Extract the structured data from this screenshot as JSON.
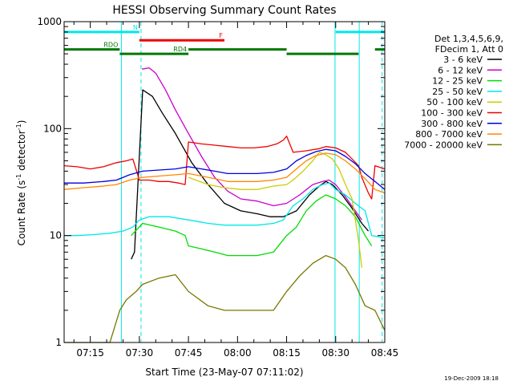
{
  "chart_data": {
    "type": "line",
    "title": "HESSI Observing Summary Count Rates",
    "xlabel": "Start Time (23-May-07 07:11:02)",
    "ylabel_main": "Count Rate (s",
    "ylabel_sup1": "-1",
    "ylabel_mid": " detector",
    "ylabel_sup2": "-1",
    "ylabel_end": ")",
    "y_scale": "log",
    "xlim": [
      -4,
      94
    ],
    "ylim": [
      1,
      1000
    ],
    "x_unit": "minutes after 07:11:02",
    "x_ticks": [
      {
        "x": 4,
        "label": "07:15"
      },
      {
        "x": 19,
        "label": "07:30"
      },
      {
        "x": 34,
        "label": "07:45"
      },
      {
        "x": 49,
        "label": "08:00"
      },
      {
        "x": 64,
        "label": "08:15"
      },
      {
        "x": 79,
        "label": "08:30"
      },
      {
        "x": 94,
        "label": "08:45"
      }
    ],
    "y_ticks": [
      {
        "y": 1,
        "label": "1"
      },
      {
        "y": 10,
        "label": "10"
      },
      {
        "y": 100,
        "label": "100"
      },
      {
        "y": 1000,
        "label": "1000"
      }
    ],
    "legend_header": [
      "Det 1,3,4,5,6,9,",
      "FDecim 1, Att 0"
    ],
    "legend_placement": "right",
    "series": [
      {
        "name": "3 - 6 keV",
        "color": "#000000",
        "points": [
          [
            16.5,
            6
          ],
          [
            17.5,
            7
          ],
          [
            20,
            230
          ],
          [
            23,
            200
          ],
          [
            26,
            140
          ],
          [
            30,
            90
          ],
          [
            35,
            48
          ],
          [
            40,
            30
          ],
          [
            45,
            20
          ],
          [
            50,
            17
          ],
          [
            55,
            16
          ],
          [
            59,
            15
          ],
          [
            63,
            15
          ],
          [
            67,
            17
          ],
          [
            71,
            24
          ],
          [
            74,
            29
          ],
          [
            76,
            32
          ],
          [
            78,
            30
          ],
          [
            81,
            24
          ],
          [
            84,
            18
          ],
          [
            87,
            13
          ],
          [
            89,
            11
          ]
        ]
      },
      {
        "name": "6 - 12 keV",
        "color": "#cc00cc",
        "points": [
          [
            19.8,
            360
          ],
          [
            22,
            370
          ],
          [
            24,
            330
          ],
          [
            27,
            230
          ],
          [
            30,
            150
          ],
          [
            34,
            90
          ],
          [
            38,
            55
          ],
          [
            42,
            35
          ],
          [
            46,
            26
          ],
          [
            50,
            22
          ],
          [
            55,
            21
          ],
          [
            60,
            19
          ],
          [
            64,
            20
          ],
          [
            68,
            24
          ],
          [
            72,
            30
          ],
          [
            75,
            32
          ],
          [
            77,
            33
          ],
          [
            79,
            30
          ],
          [
            82,
            23
          ],
          [
            85,
            17
          ],
          [
            87,
            14
          ]
        ]
      },
      {
        "name": "12 - 25 keV",
        "color": "#00dd00",
        "points": [
          [
            16.5,
            10
          ],
          [
            20,
            13
          ],
          [
            25,
            12
          ],
          [
            30,
            11
          ],
          [
            33,
            10
          ],
          [
            34,
            8
          ],
          [
            38,
            7.5
          ],
          [
            42,
            7
          ],
          [
            46,
            6.5
          ],
          [
            50,
            6.5
          ],
          [
            55,
            6.5
          ],
          [
            60,
            7
          ],
          [
            64,
            10
          ],
          [
            67,
            12
          ],
          [
            70,
            17
          ],
          [
            73,
            21
          ],
          [
            76,
            24
          ],
          [
            79,
            22
          ],
          [
            82,
            19
          ],
          [
            85,
            15
          ],
          [
            88,
            10
          ],
          [
            90,
            8
          ]
        ]
      },
      {
        "name": "25 - 50 keV",
        "color": "#00e8e8",
        "points": [
          [
            -4,
            10
          ],
          [
            0,
            10
          ],
          [
            5,
            10.2
          ],
          [
            10,
            10.5
          ],
          [
            14,
            11
          ],
          [
            17,
            12
          ],
          [
            19,
            14
          ],
          [
            22,
            15
          ],
          [
            25,
            15
          ],
          [
            28,
            15
          ],
          [
            31,
            14.5
          ],
          [
            34,
            14
          ],
          [
            37,
            13.5
          ],
          [
            40,
            13
          ],
          [
            45,
            12.5
          ],
          [
            50,
            12.5
          ],
          [
            55,
            12.5
          ],
          [
            60,
            13
          ],
          [
            63,
            14
          ],
          [
            66,
            19
          ],
          [
            69,
            22
          ],
          [
            72,
            27
          ],
          [
            75,
            30
          ],
          [
            77,
            31
          ],
          [
            79,
            27
          ],
          [
            82,
            24
          ],
          [
            85,
            20
          ],
          [
            88,
            17
          ],
          [
            90,
            10
          ],
          [
            94,
            9.5
          ]
        ]
      },
      {
        "name": "50 - 100 keV",
        "color": "#cccc00",
        "points": [
          [
            34,
            35
          ],
          [
            40,
            30
          ],
          [
            45,
            28
          ],
          [
            50,
            27
          ],
          [
            55,
            27
          ],
          [
            60,
            29
          ],
          [
            64,
            30
          ],
          [
            66,
            33
          ],
          [
            69,
            40
          ],
          [
            72,
            50
          ],
          [
            74,
            60
          ],
          [
            76,
            57
          ],
          [
            78,
            52
          ],
          [
            80,
            42
          ],
          [
            82,
            30
          ],
          [
            84,
            22
          ],
          [
            85,
            14
          ],
          [
            86,
            9
          ],
          [
            87,
            5
          ]
        ]
      },
      {
        "name": "100 - 300 keV",
        "color": "#ee0000",
        "points": [
          [
            -4,
            45
          ],
          [
            0,
            44
          ],
          [
            4,
            42
          ],
          [
            8,
            44
          ],
          [
            12,
            48
          ],
          [
            15,
            50
          ],
          [
            17,
            52
          ],
          [
            19,
            33
          ],
          [
            22,
            33
          ],
          [
            25,
            32
          ],
          [
            28,
            32
          ],
          [
            31,
            31
          ],
          [
            33,
            30
          ],
          [
            34,
            75
          ],
          [
            38,
            72
          ],
          [
            42,
            70
          ],
          [
            46,
            68
          ],
          [
            50,
            66
          ],
          [
            54,
            66
          ],
          [
            58,
            68
          ],
          [
            61,
            72
          ],
          [
            63,
            78
          ],
          [
            64,
            85
          ],
          [
            66,
            60
          ],
          [
            70,
            62
          ],
          [
            74,
            65
          ],
          [
            76,
            68
          ],
          [
            79,
            66
          ],
          [
            82,
            60
          ],
          [
            84,
            52
          ],
          [
            86,
            45
          ],
          [
            87,
            35
          ],
          [
            89,
            25
          ],
          [
            90,
            22
          ],
          [
            91,
            45
          ],
          [
            94,
            42
          ]
        ]
      },
      {
        "name": "300 - 800 keV",
        "color": "#0000dd",
        "points": [
          [
            -4,
            31
          ],
          [
            2,
            31
          ],
          [
            8,
            32
          ],
          [
            12,
            33
          ],
          [
            16,
            37
          ],
          [
            20,
            40
          ],
          [
            25,
            41
          ],
          [
            30,
            42
          ],
          [
            34,
            44
          ],
          [
            38,
            42
          ],
          [
            42,
            40
          ],
          [
            46,
            38
          ],
          [
            50,
            38
          ],
          [
            55,
            38
          ],
          [
            60,
            39
          ],
          [
            64,
            42
          ],
          [
            67,
            50
          ],
          [
            70,
            56
          ],
          [
            73,
            61
          ],
          [
            76,
            64
          ],
          [
            79,
            62
          ],
          [
            82,
            55
          ],
          [
            85,
            47
          ],
          [
            88,
            38
          ],
          [
            91,
            32
          ],
          [
            94,
            27
          ]
        ]
      },
      {
        "name": "800 - 7000 keV",
        "color": "#ff8800",
        "points": [
          [
            -4,
            27
          ],
          [
            2,
            28
          ],
          [
            8,
            29
          ],
          [
            12,
            30
          ],
          [
            16,
            33
          ],
          [
            20,
            35
          ],
          [
            25,
            36
          ],
          [
            30,
            37
          ],
          [
            34,
            38
          ],
          [
            38,
            36
          ],
          [
            42,
            34
          ],
          [
            46,
            32
          ],
          [
            50,
            32
          ],
          [
            55,
            32
          ],
          [
            60,
            33
          ],
          [
            64,
            35
          ],
          [
            67,
            42
          ],
          [
            70,
            50
          ],
          [
            73,
            56
          ],
          [
            76,
            59
          ],
          [
            79,
            57
          ],
          [
            82,
            50
          ],
          [
            85,
            42
          ],
          [
            88,
            34
          ],
          [
            91,
            27
          ],
          [
            94,
            25
          ]
        ]
      },
      {
        "name": "7000 - 20000 keV",
        "color": "#777700",
        "points": [
          [
            -4,
            1
          ],
          [
            10,
            1
          ],
          [
            13,
            2
          ],
          [
            15,
            2.5
          ],
          [
            18,
            3
          ],
          [
            20,
            3.5
          ],
          [
            25,
            4
          ],
          [
            30,
            4.3
          ],
          [
            34,
            3
          ],
          [
            40,
            2.2
          ],
          [
            45,
            2
          ],
          [
            50,
            2
          ],
          [
            55,
            2
          ],
          [
            60,
            2
          ],
          [
            64,
            3
          ],
          [
            68,
            4.2
          ],
          [
            72,
            5.5
          ],
          [
            76,
            6.5
          ],
          [
            79,
            6
          ],
          [
            82,
            5
          ],
          [
            85,
            3.5
          ],
          [
            88,
            2.2
          ],
          [
            91,
            2
          ],
          [
            94,
            1.3
          ]
        ]
      }
    ],
    "segment_bars": [
      {
        "label": "N",
        "color": "#00e8e8",
        "y": 800,
        "ranges": [
          [
            -4,
            19
          ]
        ]
      },
      {
        "label": "F",
        "color": "#ee0000",
        "y": 670,
        "ranges": [
          [
            19,
            45
          ]
        ]
      },
      {
        "label": "RDO",
        "color": "#007700",
        "y": 550,
        "ranges": [
          [
            -4,
            13
          ],
          [
            34,
            64
          ],
          [
            91,
            94
          ]
        ]
      },
      {
        "label": "RD4",
        "color": "#007700",
        "y": 500,
        "ranges": [
          [
            13,
            34
          ],
          [
            64,
            86
          ]
        ]
      }
    ],
    "extra_top_bar": {
      "color": "#00e8e8",
      "y": 800,
      "ranges": [
        [
          79,
          94
        ]
      ]
    },
    "vlines": [
      {
        "x": 13.5,
        "color": "#00e8e8",
        "style": "solid"
      },
      {
        "x": 19.5,
        "color": "#00e8e8",
        "style": "dashed"
      },
      {
        "x": 78.8,
        "color": "#00e8e8",
        "style": "solid"
      },
      {
        "x": 86.2,
        "color": "#00e8e8",
        "style": "solid"
      },
      {
        "x": 93.2,
        "color": "#00e8e8",
        "style": "dashed"
      }
    ],
    "footer_stamp": "19-Dec-2009 18:18"
  }
}
